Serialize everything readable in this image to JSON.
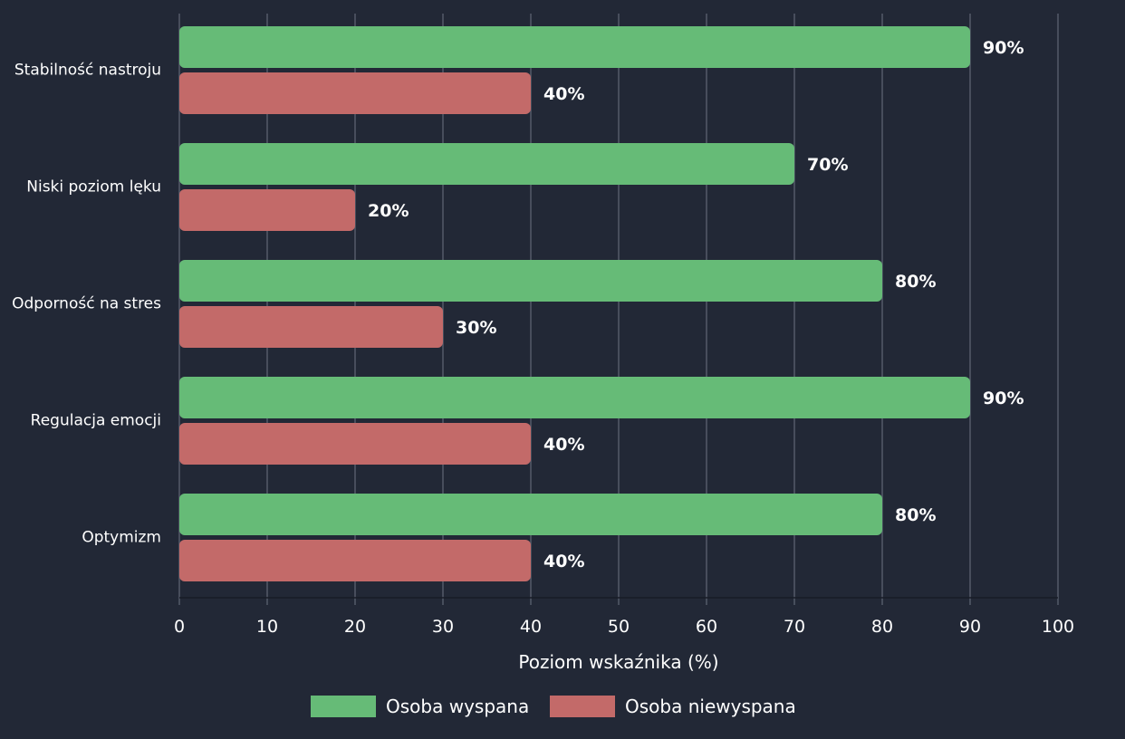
{
  "chart_data": {
    "type": "bar",
    "orientation": "horizontal",
    "categories": [
      "Stabilność nastroju",
      "Niski poziom lęku",
      "Odporność na stres",
      "Regulacja emocji",
      "Optymizm"
    ],
    "series": [
      {
        "name": "Osoba wyspana",
        "values": [
          90,
          70,
          80,
          90,
          80
        ],
        "color": "#66bb77"
      },
      {
        "name": "Osoba niewyspana",
        "values": [
          40,
          20,
          30,
          40,
          40
        ],
        "color": "#c36a69"
      }
    ],
    "value_suffix": "%",
    "xlabel": "Poziom wskaźnika (%)",
    "ylabel": "",
    "xlim": [
      0,
      100
    ],
    "xticks": [
      0,
      10,
      20,
      30,
      40,
      50,
      60,
      70,
      80,
      90,
      100
    ],
    "grid": "vertical",
    "legend_position": "bottom-center",
    "colors": {
      "background": "#222836",
      "grid": "#5c6272",
      "text": "#ffffff"
    }
  }
}
